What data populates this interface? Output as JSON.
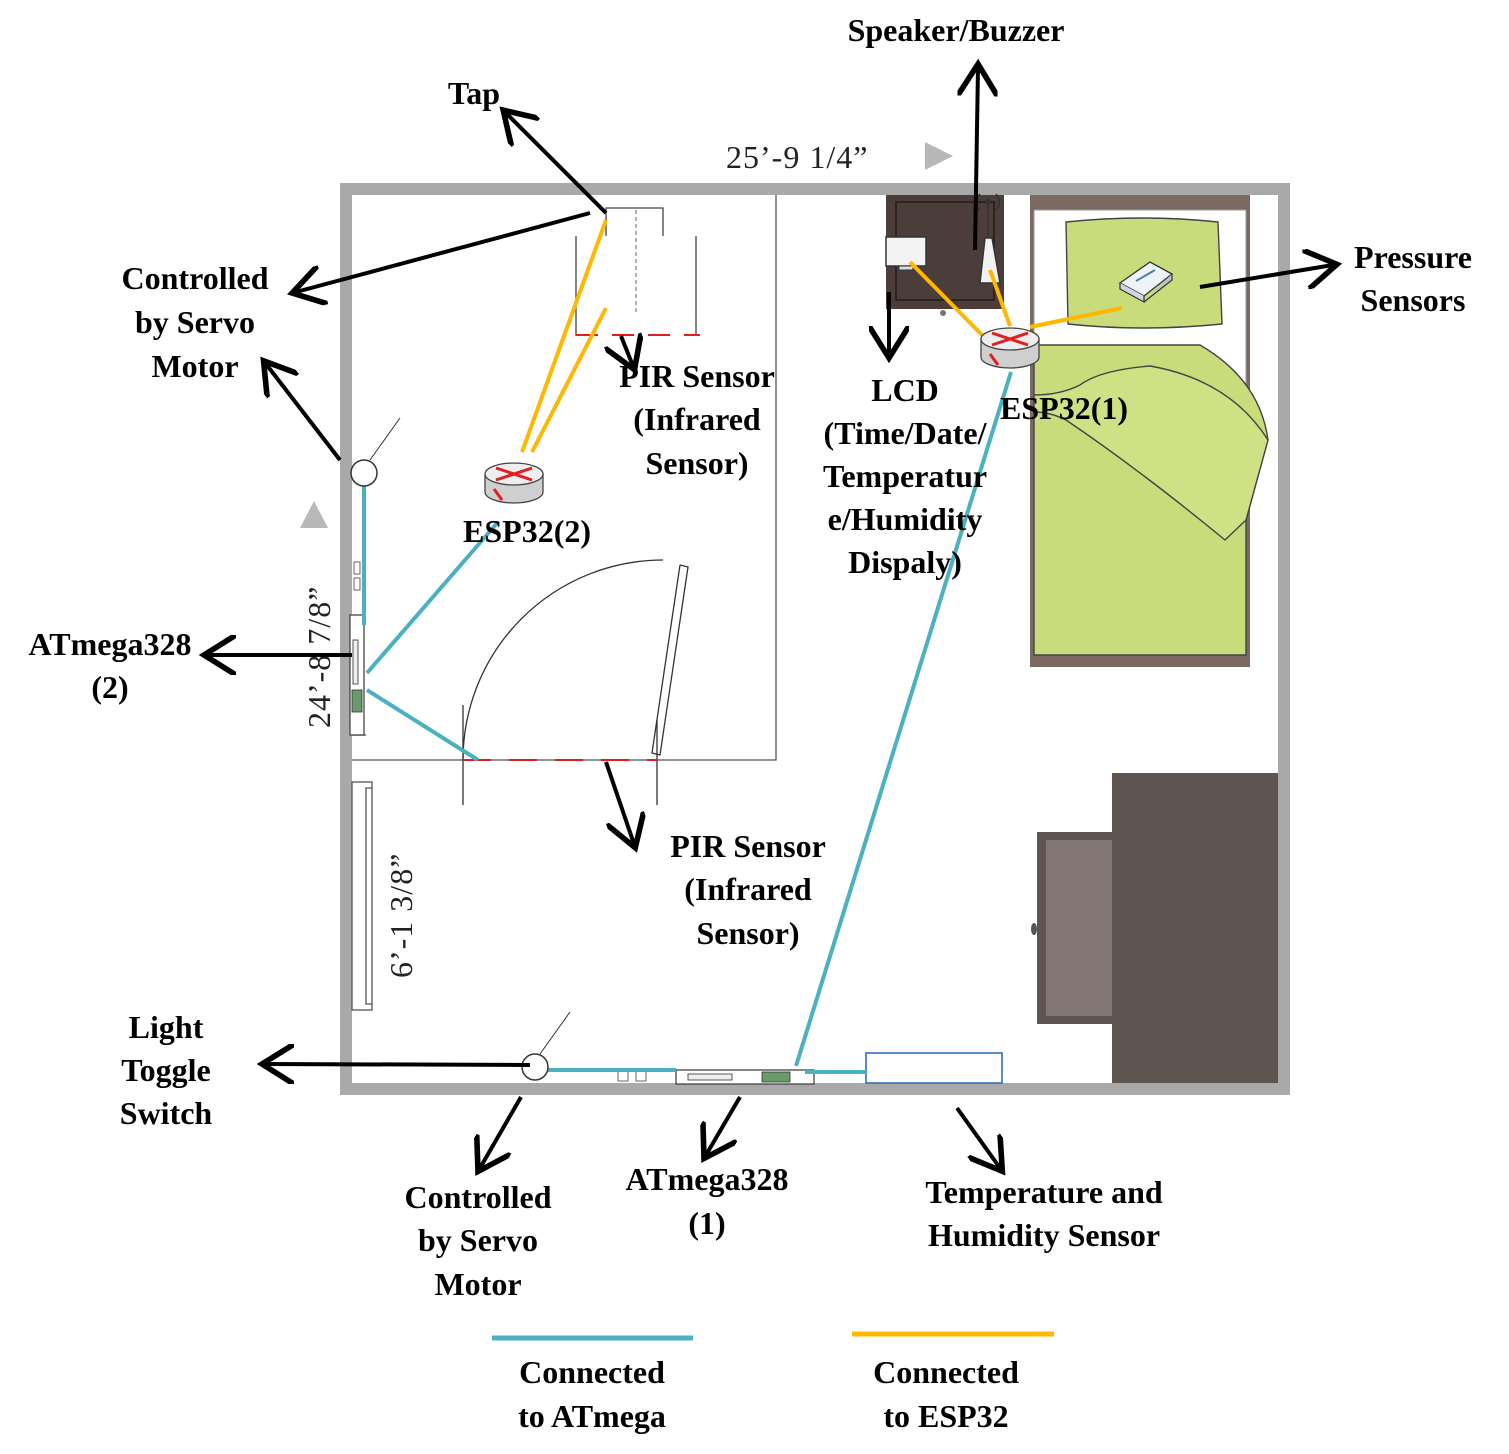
{
  "dimensions": {
    "width_top": "25’-9  1/4”",
    "height_left": "24’-8  7/8”",
    "closet": "6’-1  3/8”"
  },
  "labels": {
    "speaker": "Speaker/Buzzer",
    "tap": "Tap",
    "servo_top": [
      "Controlled",
      "by Servo",
      "Motor"
    ],
    "pir_top": [
      "PIR Sensor",
      "(Infrared",
      "Sensor)"
    ],
    "lcd": [
      "LCD",
      "(Time/Date/",
      "Temperatur",
      "e/Humidity",
      "Dispaly)"
    ],
    "esp32_1": "ESP32(1)",
    "esp32_2": "ESP32(2)",
    "pressure": [
      "Pressure",
      "Sensors"
    ],
    "atmega2": [
      "ATmega328",
      "(2)"
    ],
    "pir_bottom": [
      "PIR Sensor",
      "(Infrared",
      "Sensor)"
    ],
    "light_switch": [
      "Light",
      "Toggle",
      "Switch"
    ],
    "servo_bottom": [
      "Controlled",
      "by Servo",
      "Motor"
    ],
    "atmega1": [
      "ATmega328",
      "(1)"
    ],
    "temp_humidity": [
      "Temperature and",
      "Humidity Sensor"
    ]
  },
  "legend": {
    "atmega": [
      "Connected",
      "to ATmega"
    ],
    "esp32": [
      "Connected",
      "to ESP32"
    ]
  },
  "colors": {
    "atmega_line": "#4bb0c0",
    "esp32_line": "#ffb700",
    "pir_beam": "#e02020",
    "wall": "#a0a0a0",
    "bed_cover": "#c8dc7c",
    "bed_frame": "#7a6a62",
    "furniture": "#5f5550"
  }
}
